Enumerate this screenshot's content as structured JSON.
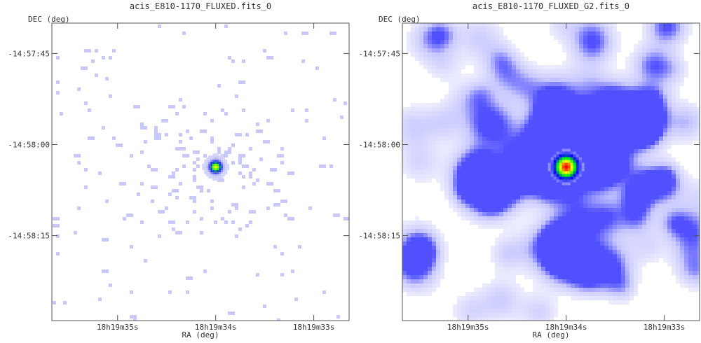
{
  "chart_data": [
    {
      "type": "heatmap",
      "title": "acis_E810-1170_FLUXED.fits_0",
      "xlabel": "RA (deg)",
      "ylabel": "DEC (deg)",
      "x_tick_labels": [
        "18h19m35s",
        "18h19m34s",
        "18h19m33s"
      ],
      "y_tick_labels": [
        "-14:57:45",
        "-14:58:00",
        "-14:58:15"
      ],
      "x_ticks_sec": [
        35,
        34,
        33
      ],
      "y_ticks_arcsec": [
        45,
        60,
        75
      ],
      "xlim_sec": [
        35.67,
        32.64
      ],
      "ylim_arcsec": [
        40.0,
        89.0
      ],
      "source": {
        "ra_sec": 34.0,
        "dec_arcsec": 63.7
      },
      "rendering": "binned counts",
      "colormap": [
        "#ffffff",
        "#c8c8ff",
        "#0000ff",
        "#00ff00",
        "#ffff00",
        "#ff0000"
      ]
    },
    {
      "type": "heatmap",
      "title": "acis_E810-1170_FLUXED_G2.fits_0",
      "xlabel": "RA (deg)",
      "ylabel": "DEC (deg)",
      "x_tick_labels": [
        "18h19m35s",
        "18h19m34s",
        "18h19m33s"
      ],
      "y_tick_labels": [
        "-14:57:45",
        "-14:58:00",
        "-14:58:15"
      ],
      "x_ticks_sec": [
        35,
        34,
        33
      ],
      "y_ticks_arcsec": [
        45,
        60,
        75
      ],
      "xlim_sec": [
        35.67,
        32.64
      ],
      "ylim_arcsec": [
        40.0,
        89.0
      ],
      "source": {
        "ra_sec": 34.0,
        "dec_arcsec": 63.7
      },
      "rendering": "Gaussian smoothed",
      "colormap": [
        "#ffffff",
        "#c8c8ff",
        "#0000ff",
        "#00ff00",
        "#ffff00",
        "#ff0000"
      ]
    }
  ]
}
